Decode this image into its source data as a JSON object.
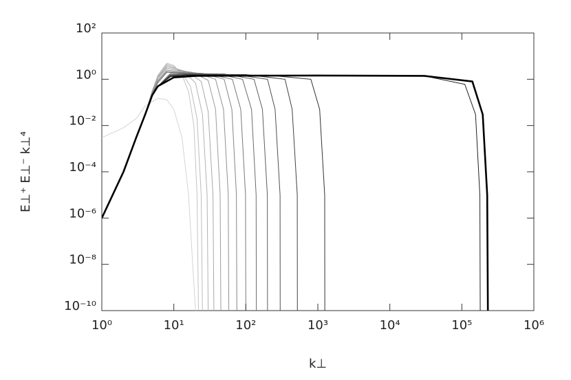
{
  "chart_data": {
    "type": "line",
    "xlabel": "k⊥",
    "ylabel": "E⊥⁺ E⊥⁻ k⊥⁴",
    "xscale": "log",
    "yscale": "log",
    "xlim": [
      1,
      1000000
    ],
    "ylim": [
      1e-10,
      100
    ],
    "xticks": [
      {
        "value": 1,
        "label": "10⁰"
      },
      {
        "value": 10,
        "label": "10¹"
      },
      {
        "value": 100,
        "label": "10²"
      },
      {
        "value": 1000,
        "label": "10³"
      },
      {
        "value": 10000,
        "label": "10⁴"
      },
      {
        "value": 100000,
        "label": "10⁵"
      },
      {
        "value": 1000000,
        "label": "10⁶"
      }
    ],
    "yticks": [
      {
        "value": 1e-10,
        "label": "10⁻¹⁰"
      },
      {
        "value": 1e-08,
        "label": "10⁻⁸"
      },
      {
        "value": 1e-06,
        "label": "10⁻⁶"
      },
      {
        "value": 0.0001,
        "label": "10⁻⁴"
      },
      {
        "value": 0.01,
        "label": "10⁻²"
      },
      {
        "value": 1,
        "label": "10⁰"
      },
      {
        "value": 100,
        "label": "10²"
      }
    ],
    "series": [
      {
        "color": "#d4d4d4",
        "x": [
          1,
          2,
          3,
          4,
          6,
          8,
          10,
          13,
          16,
          20
        ],
        "values": [
          0.003,
          0.008,
          0.02,
          0.07,
          0.15,
          0.13,
          0.05,
          0.003,
          1e-05,
          1e-10
        ]
      },
      {
        "color": "#c4c4c4",
        "x": [
          1,
          2,
          3,
          4,
          5,
          6,
          8,
          10,
          13,
          16,
          19,
          21,
          22
        ],
        "values": [
          1e-06,
          0.0001,
          0.003,
          0.03,
          0.3,
          1.5,
          5,
          4,
          1.5,
          0.3,
          0.01,
          1e-05,
          1e-10
        ]
      },
      {
        "color": "#bcbcbc",
        "x": [
          1,
          2,
          3,
          4,
          5,
          6,
          8,
          10,
          13,
          17,
          21,
          24,
          25
        ],
        "values": [
          1e-06,
          0.0001,
          0.003,
          0.03,
          0.3,
          1.4,
          4.5,
          3.6,
          1.8,
          0.5,
          0.02,
          1e-05,
          1e-10
        ]
      },
      {
        "color": "#b2b2b2",
        "x": [
          1,
          2,
          3,
          4,
          5,
          6,
          8,
          10,
          14,
          20,
          25,
          29,
          30
        ],
        "values": [
          1e-06,
          0.0001,
          0.003,
          0.03,
          0.3,
          1.3,
          4,
          3.2,
          2,
          0.7,
          0.03,
          1e-05,
          1e-10
        ]
      },
      {
        "color": "#a8a8a8",
        "x": [
          1,
          2,
          3,
          4,
          5,
          6,
          8,
          11,
          16,
          24,
          30,
          35,
          36
        ],
        "values": [
          1e-06,
          0.0001,
          0.003,
          0.03,
          0.3,
          1.2,
          3.5,
          2.8,
          2,
          0.8,
          0.04,
          1e-05,
          1e-10
        ]
      },
      {
        "color": "#9c9c9c",
        "x": [
          1,
          2,
          3,
          4,
          5,
          6,
          8,
          11,
          18,
          30,
          38,
          44,
          45
        ],
        "values": [
          1e-06,
          0.0001,
          0.003,
          0.03,
          0.3,
          1.1,
          3,
          2.5,
          2,
          0.9,
          0.05,
          1e-05,
          1e-10
        ]
      },
      {
        "color": "#909090",
        "x": [
          1,
          2,
          3,
          4,
          5,
          6,
          8,
          12,
          20,
          38,
          49,
          57,
          58
        ],
        "values": [
          1e-06,
          0.0001,
          0.003,
          0.03,
          0.25,
          0.9,
          2.5,
          2.2,
          1.9,
          1,
          0.05,
          1e-05,
          1e-10
        ]
      },
      {
        "color": "#848484",
        "x": [
          1,
          2,
          3,
          4,
          5,
          6,
          8,
          12,
          25,
          50,
          64,
          74,
          75
        ],
        "values": [
          1e-06,
          0.0001,
          0.003,
          0.03,
          0.25,
          0.8,
          2.2,
          2,
          1.8,
          1,
          0.05,
          1e-05,
          1e-10
        ]
      },
      {
        "color": "#787878",
        "x": [
          1,
          2,
          3,
          4,
          5,
          6,
          8,
          12,
          30,
          65,
          85,
          99,
          100
        ],
        "values": [
          1e-06,
          0.0001,
          0.003,
          0.03,
          0.22,
          0.7,
          2,
          1.9,
          1.7,
          1,
          0.05,
          1e-05,
          1e-10
        ]
      },
      {
        "color": "#6a6a6a",
        "x": [
          1,
          2,
          3,
          4,
          5,
          6,
          9,
          14,
          40,
          90,
          120,
          139,
          140
        ],
        "values": [
          1e-06,
          0.0001,
          0.003,
          0.03,
          0.2,
          0.5,
          1.8,
          1.8,
          1.7,
          1,
          0.05,
          1e-05,
          1e-10
        ]
      },
      {
        "color": "#5c5c5c",
        "x": [
          1,
          2,
          3,
          4,
          5,
          6,
          9,
          14,
          50,
          130,
          170,
          199,
          200
        ],
        "values": [
          1e-06,
          0.0001,
          0.003,
          0.03,
          0.2,
          0.5,
          1.6,
          1.7,
          1.7,
          1,
          0.05,
          1e-05,
          1e-10
        ]
      },
      {
        "color": "#4e4e4e",
        "x": [
          1,
          2,
          3,
          4,
          5,
          6,
          9,
          15,
          70,
          200,
          255,
          299,
          300
        ],
        "values": [
          1e-06,
          0.0001,
          0.003,
          0.03,
          0.2,
          0.5,
          1.5,
          1.6,
          1.6,
          1,
          0.05,
          1e-05,
          1e-10
        ]
      },
      {
        "color": "#404040",
        "x": [
          1,
          2,
          3,
          4,
          5,
          6,
          9,
          15,
          100,
          350,
          440,
          518,
          520
        ],
        "values": [
          1e-06,
          0.0001,
          0.003,
          0.03,
          0.2,
          0.5,
          1.4,
          1.6,
          1.6,
          1,
          0.05,
          1e-05,
          1e-10
        ]
      },
      {
        "color": "#303030",
        "x": [
          1,
          2,
          3,
          4,
          5,
          6,
          9,
          15,
          200,
          800,
          1060,
          1245,
          1250
        ],
        "values": [
          1e-06,
          0.0001,
          0.003,
          0.03,
          0.2,
          0.5,
          1.3,
          1.5,
          1.5,
          1,
          0.05,
          1e-05,
          1e-10
        ]
      },
      {
        "color": "#202020",
        "x": [
          1,
          2,
          3,
          4,
          5,
          6,
          9,
          15,
          1000,
          30000,
          110000,
          155000,
          178000,
          180000
        ],
        "values": [
          1e-06,
          0.0001,
          0.003,
          0.03,
          0.2,
          0.5,
          1.3,
          1.5,
          1.5,
          1.4,
          0.6,
          0.03,
          1e-05,
          1e-10
        ]
      },
      {
        "color": "#000000",
        "width": 2.6,
        "x": [
          1,
          2,
          3,
          4,
          5,
          6,
          10,
          20,
          1000,
          30000,
          140000,
          195000,
          225000,
          230000
        ],
        "values": [
          1e-06,
          0.0001,
          0.003,
          0.03,
          0.2,
          0.5,
          1.2,
          1.4,
          1.45,
          1.4,
          0.8,
          0.03,
          1e-05,
          1e-10
        ]
      }
    ]
  }
}
